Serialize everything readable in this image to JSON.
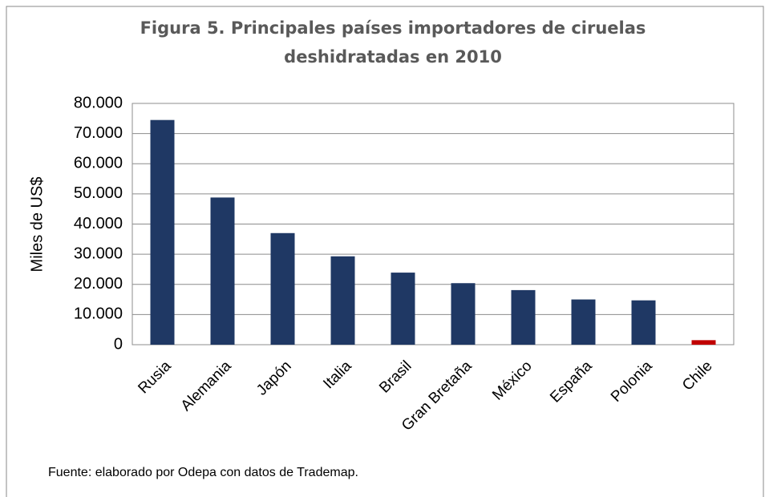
{
  "chart_data": {
    "type": "bar",
    "title": [
      "Figura 5. Principales países importadores de ciruelas",
      "deshidratadas en 2010"
    ],
    "ylabel": "Miles de US$",
    "categories": [
      "Rusia",
      "Alemania",
      "Japón",
      "Italia",
      "Brasil",
      "Gran Bretaña",
      "México",
      "España",
      "Polonia",
      "Chile"
    ],
    "values": [
      74500,
      48800,
      37000,
      29300,
      23900,
      20400,
      18100,
      15000,
      14700,
      1500
    ],
    "colors": [
      "#1f3864",
      "#1f3864",
      "#1f3864",
      "#1f3864",
      "#1f3864",
      "#1f3864",
      "#1f3864",
      "#1f3864",
      "#1f3864",
      "#c00000"
    ],
    "ylim": [
      0,
      80000
    ],
    "yticks": [
      0,
      {
        "value": 10000,
        "label": "10.000"
      },
      {
        "value": 20000,
        "label": "20.000"
      },
      {
        "value": 30000,
        "label": "30.000"
      },
      {
        "value": 40000,
        "label": "40.000"
      },
      {
        "value": 50000,
        "label": "50.000"
      },
      {
        "value": 60000,
        "label": "60.000"
      },
      {
        "value": 70000,
        "label": "70.000"
      },
      {
        "value": 80000,
        "label": "80.000"
      }
    ],
    "grid": true,
    "source": "Fuente: elaborado por Odepa con datos de Trademap."
  }
}
